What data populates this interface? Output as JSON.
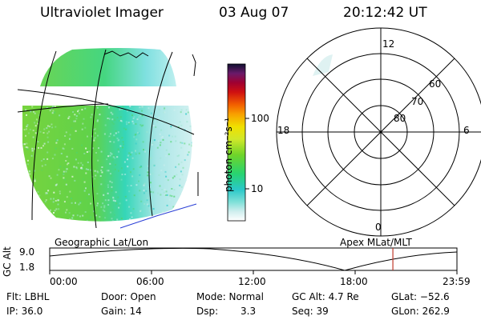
{
  "header": {
    "instrument": "Ultraviolet Imager",
    "date": "03 Aug 07",
    "time": "20:12:42 UT"
  },
  "colorbar": {
    "unit_label": "photon cm⁻²s⁻¹",
    "ticks": [
      "100",
      "10"
    ],
    "scale": "log"
  },
  "polar_plot": {
    "mlt_labels": [
      "12",
      "18",
      "6",
      "0"
    ],
    "lat_labels": [
      "60",
      "70",
      "80"
    ]
  },
  "panel_labels": {
    "left": "Geographic Lat/Lon",
    "right": "Apex MLat/MLT"
  },
  "timeline": {
    "ylabel": "GC Alt",
    "y_ticks": [
      "9.0",
      "1.8"
    ],
    "x_ticks": [
      "00:00",
      "06:00",
      "12:00",
      "18:00",
      "23:59"
    ],
    "marker_time_hours": 20.21
  },
  "info": {
    "row1": {
      "filter": "Flt: LBHL",
      "door": "Door: Open",
      "mode": "Mode: Normal",
      "gc_alt": "GC Alt: 4.7 Re",
      "glat": "GLat: −52.6"
    },
    "row2": {
      "ip": "IP: 36.0",
      "gain": "Gain: 14",
      "dsp_label": "Dsp:",
      "dsp_value": "3.3",
      "seq": "Seq: 39",
      "glon": "GLon: 262.9"
    }
  },
  "colors": {
    "aurora_green": "#6fd42a",
    "aurora_cyan": "#3fd6c8",
    "aurora_pale": "#cfeeee",
    "marker": "#c0392b",
    "coast": "#2a3fd6"
  }
}
